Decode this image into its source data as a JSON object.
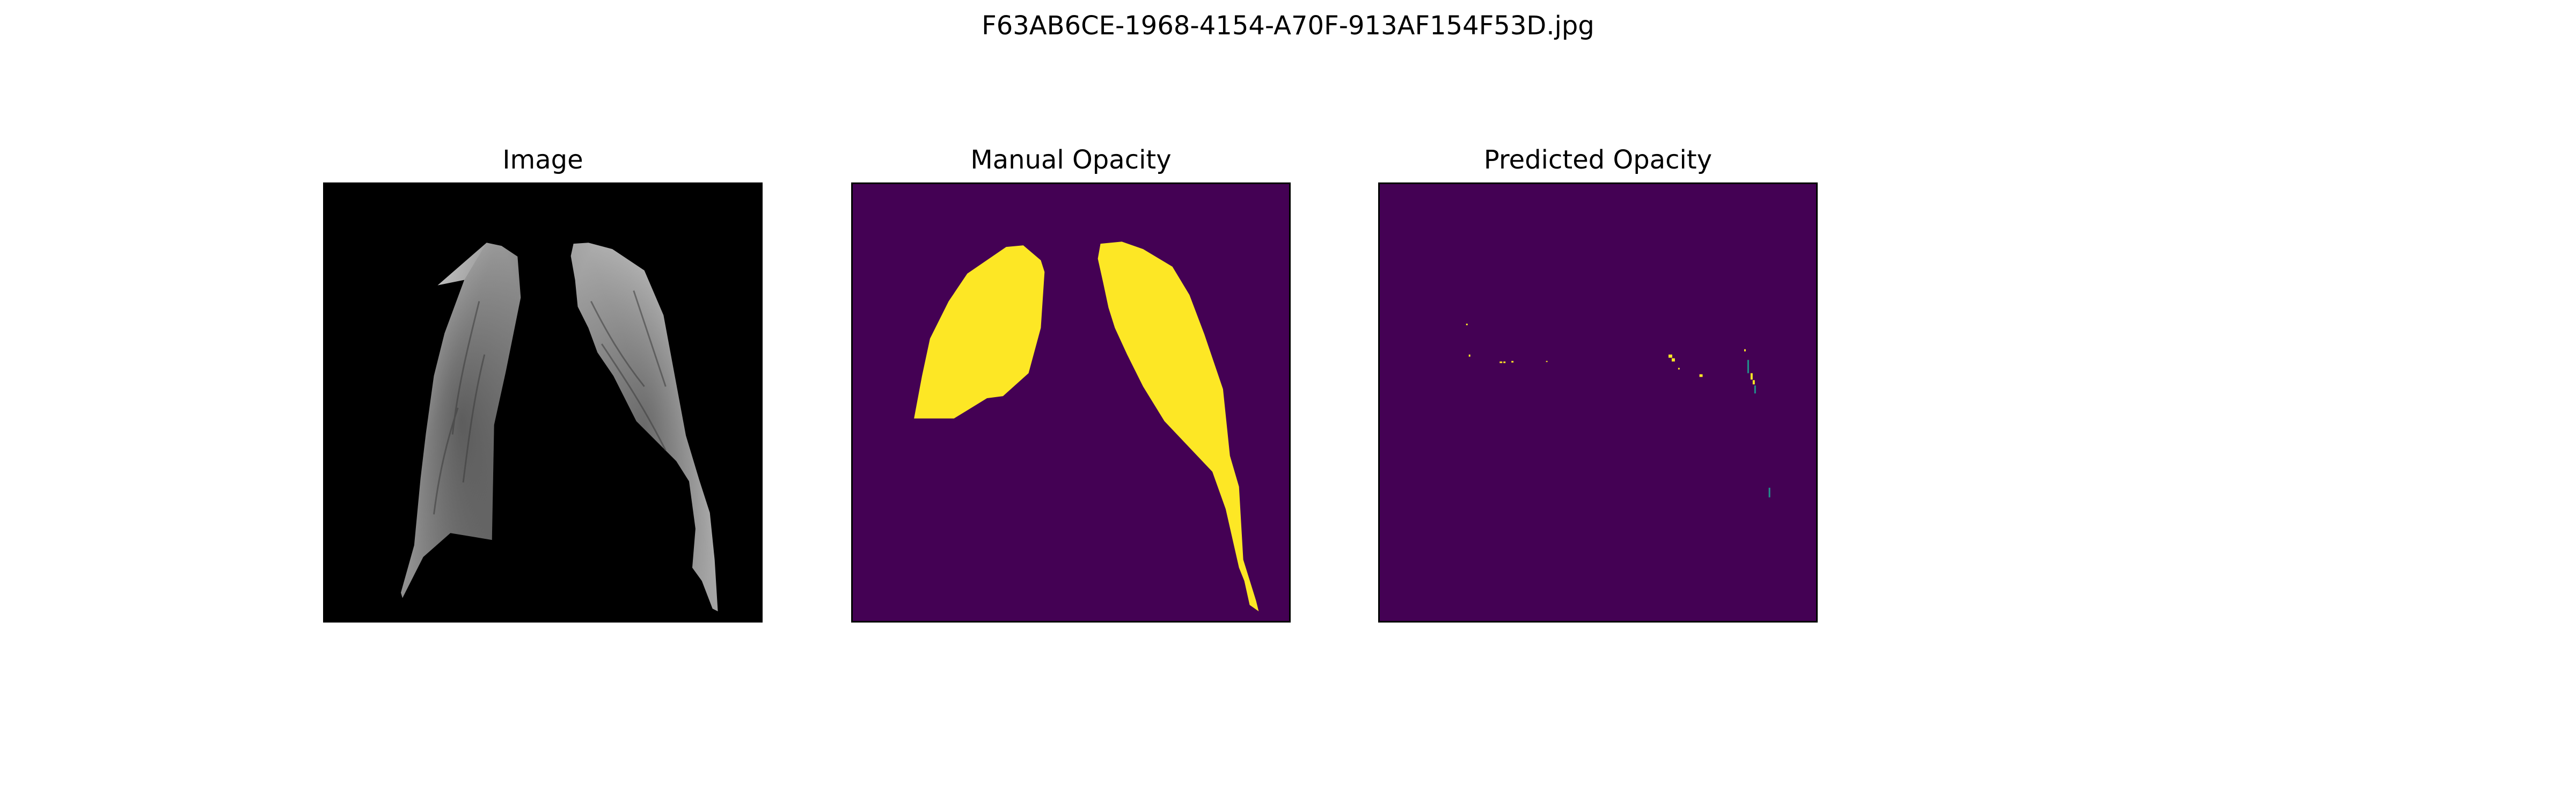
{
  "figure": {
    "title": "F63AB6CE-1968-4154-A70F-913AF154F53D.jpg"
  },
  "panels": [
    {
      "title": "Image"
    },
    {
      "title": "Manual Opacity"
    },
    {
      "title": "Predicted Opacity"
    }
  ],
  "colors": {
    "background_image": "#000000",
    "mask_background": "#440154",
    "mask_foreground": "#fde725",
    "mask_mid": "#21918c"
  }
}
